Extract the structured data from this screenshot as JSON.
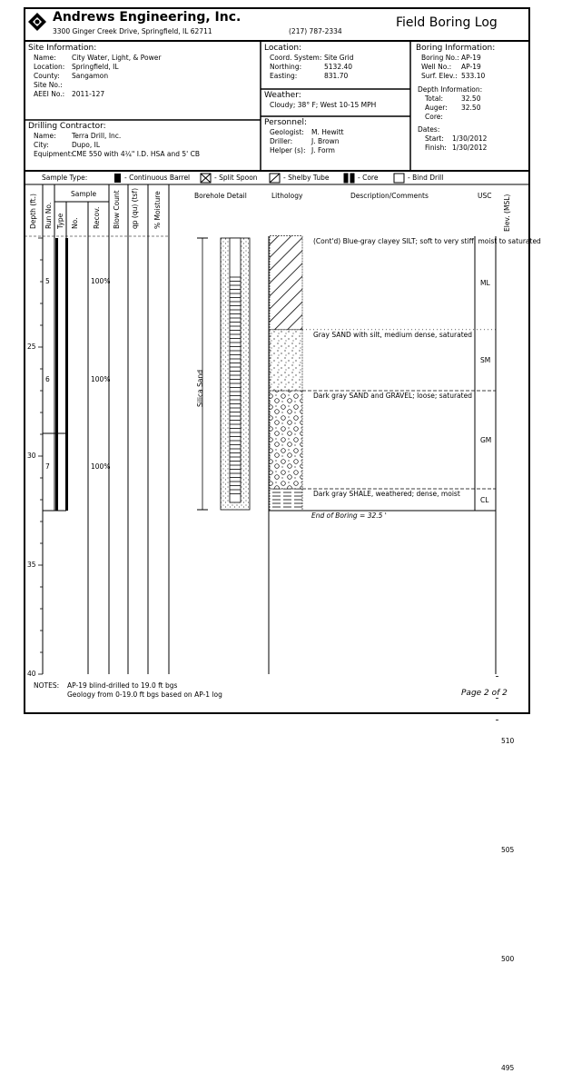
{
  "header": {
    "company": "Andrews Engineering, Inc.",
    "address": "3300 Ginger Creek Drive, Springfield, IL  62711",
    "phone": "(217) 787-2334",
    "doc_title": "Field Boring Log",
    "logo_icon": "diamond-logo-icon"
  },
  "site": {
    "heading": "Site Information:",
    "rows": [
      {
        "label": "Name:",
        "value": "City Water, Light, & Power"
      },
      {
        "label": "Location:",
        "value": "Springfield, IL"
      },
      {
        "label": "County:",
        "value": "Sangamon"
      },
      {
        "label": "Site No.:",
        "value": ""
      },
      {
        "label": "AEEI No.:",
        "value": "2011-127"
      }
    ]
  },
  "contractor": {
    "heading": "Drilling Contractor:",
    "rows": [
      {
        "label": "Name:",
        "value": "Terra Drill, Inc."
      },
      {
        "label": "City:",
        "value": "Dupo, IL"
      },
      {
        "label": "Equipment:",
        "value": "CME 550 with 4¼\" I.D. HSA and 5' CB"
      }
    ]
  },
  "location": {
    "heading": "Location:",
    "rows": [
      {
        "label": "Coord. System:",
        "value": "Site Grid"
      },
      {
        "label": "Northing:",
        "value": "5132.40"
      },
      {
        "label": "Easting:",
        "value": "831.70"
      }
    ]
  },
  "weather": {
    "heading": "Weather:",
    "value": "Cloudy; 38° F; West 10-15 MPH"
  },
  "personnel": {
    "heading": "Personnel:",
    "rows": [
      {
        "label": "Geologist:",
        "value": "M. Hewitt"
      },
      {
        "label": "Driller:",
        "value": "J. Brown"
      },
      {
        "label": "Helper (s):",
        "value": "J. Form"
      }
    ]
  },
  "boring": {
    "heading": "Boring Information:",
    "rows": [
      {
        "label": "Boring No.:",
        "value": "AP-19"
      },
      {
        "label": "Well No.:",
        "value": "AP-19"
      },
      {
        "label": "Surf. Elev.:",
        "value": "533.10"
      }
    ],
    "depth_heading": "Depth Information:",
    "depth_rows": [
      {
        "label": "Total:",
        "value": "32.50"
      },
      {
        "label": "Auger:",
        "value": "32.50"
      },
      {
        "label": "Core:",
        "value": ""
      }
    ],
    "dates_heading": "Dates:",
    "date_rows": [
      {
        "label": "Start:",
        "value": "1/30/2012"
      },
      {
        "label": "Finish:",
        "value": "1/30/2012"
      }
    ]
  },
  "sample_types": {
    "label": "Sample Type:",
    "items": [
      {
        "icon": "continuous-barrel-icon",
        "label": "- Continuous Barrel"
      },
      {
        "icon": "split-spoon-icon",
        "label": "- Split Spoon"
      },
      {
        "icon": "shelby-tube-icon",
        "label": "- Shelby Tube"
      },
      {
        "icon": "core-icon",
        "label": "- Core"
      },
      {
        "icon": "blind-drill-icon",
        "label": "- Bind Drill"
      }
    ]
  },
  "columns": {
    "depth": "Depth (ft.)",
    "run": "Run No.",
    "sample": "Sample",
    "type": "Type",
    "no": "No.",
    "recov": "Recov.",
    "blow": "Blow Count",
    "qp": "qp (qu) (tsf)",
    "moisture": "% Moisture",
    "borehole": "Borehole Detail",
    "lithology": "Lithology",
    "description": "Description/Comments",
    "usc": "USC",
    "elev": "Elev. (MSL)"
  },
  "depth_ticks": [
    "25",
    "30",
    "35",
    "40"
  ],
  "elev_ticks": [
    "510",
    "505",
    "500",
    "495"
  ],
  "runs": [
    {
      "no": "5",
      "recov": "100%",
      "depth": 22.0
    },
    {
      "no": "6",
      "recov": "100%",
      "depth": 26.5
    },
    {
      "no": "7",
      "recov": "100%",
      "depth": 30.5
    }
  ],
  "borehole": {
    "fill_label": "Silica Sand"
  },
  "layers": [
    {
      "top": 19.9,
      "bottom": 24.2,
      "pattern": "silt",
      "description": "(Cont'd) Blue-gray clayey SILT; soft to very stiff, moist to saturated",
      "usc": "ML"
    },
    {
      "top": 24.2,
      "bottom": 27.0,
      "pattern": "sand",
      "description": "Gray SAND with silt, medium dense, saturated",
      "usc": "SM"
    },
    {
      "top": 27.0,
      "bottom": 31.5,
      "pattern": "gravel",
      "description": "Dark gray SAND and GRAVEL; loose; saturated",
      "usc": "GM"
    },
    {
      "top": 31.5,
      "bottom": 32.5,
      "pattern": "shale",
      "description": "Dark gray SHALE, weathered; dense, moist",
      "usc": "CL"
    }
  ],
  "end_of_boring": "End of Boring = 32.5 '",
  "notes": {
    "label": "NOTES:",
    "lines": [
      "AP-19 blind-drilled to 19.0 ft bgs",
      "Geology from 0-19.0 ft bgs based on AP-1 log"
    ]
  },
  "page": "Page 2 of 2"
}
